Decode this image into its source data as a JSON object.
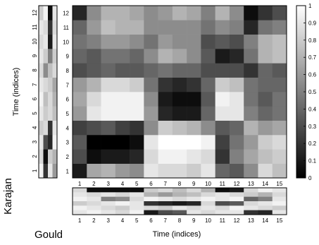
{
  "chart_data": {
    "type": "heatmap",
    "title": "",
    "xlabel": "Time (indices)",
    "ylabel": "Time (indices)",
    "x": [
      1,
      2,
      3,
      4,
      5,
      6,
      7,
      8,
      9,
      10,
      11,
      12,
      13,
      14,
      15
    ],
    "y": [
      1,
      2,
      3,
      4,
      5,
      6,
      7,
      8,
      9,
      10,
      11,
      12
    ],
    "colormap": "gray",
    "colorbar": {
      "ticks": [
        0,
        0.1,
        0.2,
        0.3,
        0.4,
        0.5,
        0.6,
        0.7,
        0.8,
        0.9,
        1
      ],
      "range": [
        0,
        1
      ]
    },
    "matrix": [
      [
        0.1,
        0.65,
        0.7,
        0.6,
        0.55,
        0.9,
        0.85,
        0.85,
        0.8,
        0.9,
        0.4,
        0.35,
        0.55,
        0.85,
        0.75
      ],
      [
        0.3,
        0.05,
        0.1,
        0.1,
        0.15,
        0.85,
        0.95,
        0.95,
        0.9,
        0.85,
        0.2,
        0.5,
        0.65,
        0.75,
        0.8
      ],
      [
        0.35,
        0.0,
        0.0,
        0.0,
        0.05,
        0.9,
        1.0,
        1.0,
        1.0,
        0.95,
        0.25,
        0.45,
        0.6,
        0.8,
        0.85
      ],
      [
        0.25,
        0.3,
        0.35,
        0.25,
        0.2,
        0.55,
        0.8,
        0.75,
        0.7,
        0.55,
        0.35,
        0.4,
        0.7,
        0.6,
        0.65
      ],
      [
        0.6,
        0.9,
        0.95,
        0.95,
        0.95,
        0.6,
        0.15,
        0.1,
        0.1,
        0.4,
        0.9,
        0.9,
        0.5,
        0.4,
        0.45
      ],
      [
        0.65,
        0.85,
        0.95,
        0.95,
        0.95,
        0.55,
        0.1,
        0.05,
        0.05,
        0.35,
        0.95,
        0.9,
        0.45,
        0.35,
        0.45
      ],
      [
        0.6,
        0.7,
        0.85,
        0.85,
        0.8,
        0.45,
        0.2,
        0.15,
        0.2,
        0.4,
        0.8,
        0.75,
        0.45,
        0.4,
        0.4
      ],
      [
        0.3,
        0.35,
        0.4,
        0.35,
        0.35,
        0.4,
        0.45,
        0.4,
        0.4,
        0.3,
        0.3,
        0.3,
        0.2,
        0.4,
        0.35
      ],
      [
        0.4,
        0.35,
        0.45,
        0.45,
        0.4,
        0.55,
        0.7,
        0.65,
        0.55,
        0.35,
        0.1,
        0.15,
        0.45,
        0.7,
        0.75
      ],
      [
        0.45,
        0.5,
        0.6,
        0.6,
        0.55,
        0.45,
        0.6,
        0.55,
        0.55,
        0.3,
        0.35,
        0.3,
        0.5,
        0.7,
        0.75
      ],
      [
        0.4,
        0.6,
        0.75,
        0.7,
        0.7,
        0.55,
        0.55,
        0.55,
        0.55,
        0.45,
        0.55,
        0.5,
        0.15,
        0.45,
        0.5
      ],
      [
        0.15,
        0.55,
        0.7,
        0.7,
        0.65,
        0.55,
        0.6,
        0.7,
        0.65,
        0.5,
        0.7,
        0.55,
        0.05,
        0.2,
        0.3
      ]
    ]
  },
  "side_panels": {
    "left_label": "Karajan",
    "bottom_label": "Gould",
    "left_strip": [
      [
        0.95,
        0.2,
        0.9,
        0.6
      ],
      [
        0.85,
        0.05,
        0.8,
        0.7
      ],
      [
        0.9,
        0.3,
        0.15,
        0.95
      ],
      [
        0.8,
        0.85,
        0.2,
        0.9
      ],
      [
        0.9,
        0.8,
        0.85,
        0.75
      ],
      [
        0.95,
        0.75,
        0.85,
        0.7
      ],
      [
        0.9,
        0.85,
        0.8,
        0.65
      ],
      [
        0.85,
        0.55,
        0.75,
        0.85
      ],
      [
        0.9,
        0.8,
        0.5,
        0.8
      ],
      [
        0.85,
        0.9,
        0.1,
        0.9
      ],
      [
        0.9,
        0.85,
        0.2,
        0.85
      ],
      [
        0.8,
        0.95,
        0.05,
        0.9
      ]
    ],
    "bottom_strip": [
      [
        0.85,
        0.05,
        0.05,
        0.05,
        0.05,
        0.8,
        0.85,
        0.75,
        0.85,
        0.7,
        0.05,
        0.1,
        0.85,
        0.95,
        0.9
      ],
      [
        0.9,
        0.85,
        0.9,
        0.85,
        0.9,
        0.7,
        0.6,
        0.7,
        0.75,
        0.85,
        0.9,
        0.85,
        0.8,
        0.7,
        0.85
      ],
      [
        0.95,
        0.9,
        0.5,
        0.55,
        0.85,
        0.95,
        0.9,
        0.85,
        0.9,
        0.95,
        0.9,
        0.95,
        0.4,
        0.5,
        0.9
      ],
      [
        0.8,
        0.85,
        0.9,
        0.95,
        0.9,
        0.2,
        0.15,
        0.1,
        0.15,
        0.85,
        0.3,
        0.35,
        0.85,
        0.9,
        0.95
      ],
      [
        0.95,
        0.9,
        0.85,
        0.8,
        0.9,
        0.85,
        0.8,
        0.9,
        0.85,
        0.9,
        0.85,
        0.95,
        0.9,
        0.85,
        0.8
      ],
      [
        0.9,
        0.95,
        0.9,
        0.85,
        0.95,
        0.1,
        0.3,
        0.35,
        0.9,
        0.85,
        0.9,
        0.9,
        0.2,
        0.15,
        0.9
      ]
    ]
  }
}
